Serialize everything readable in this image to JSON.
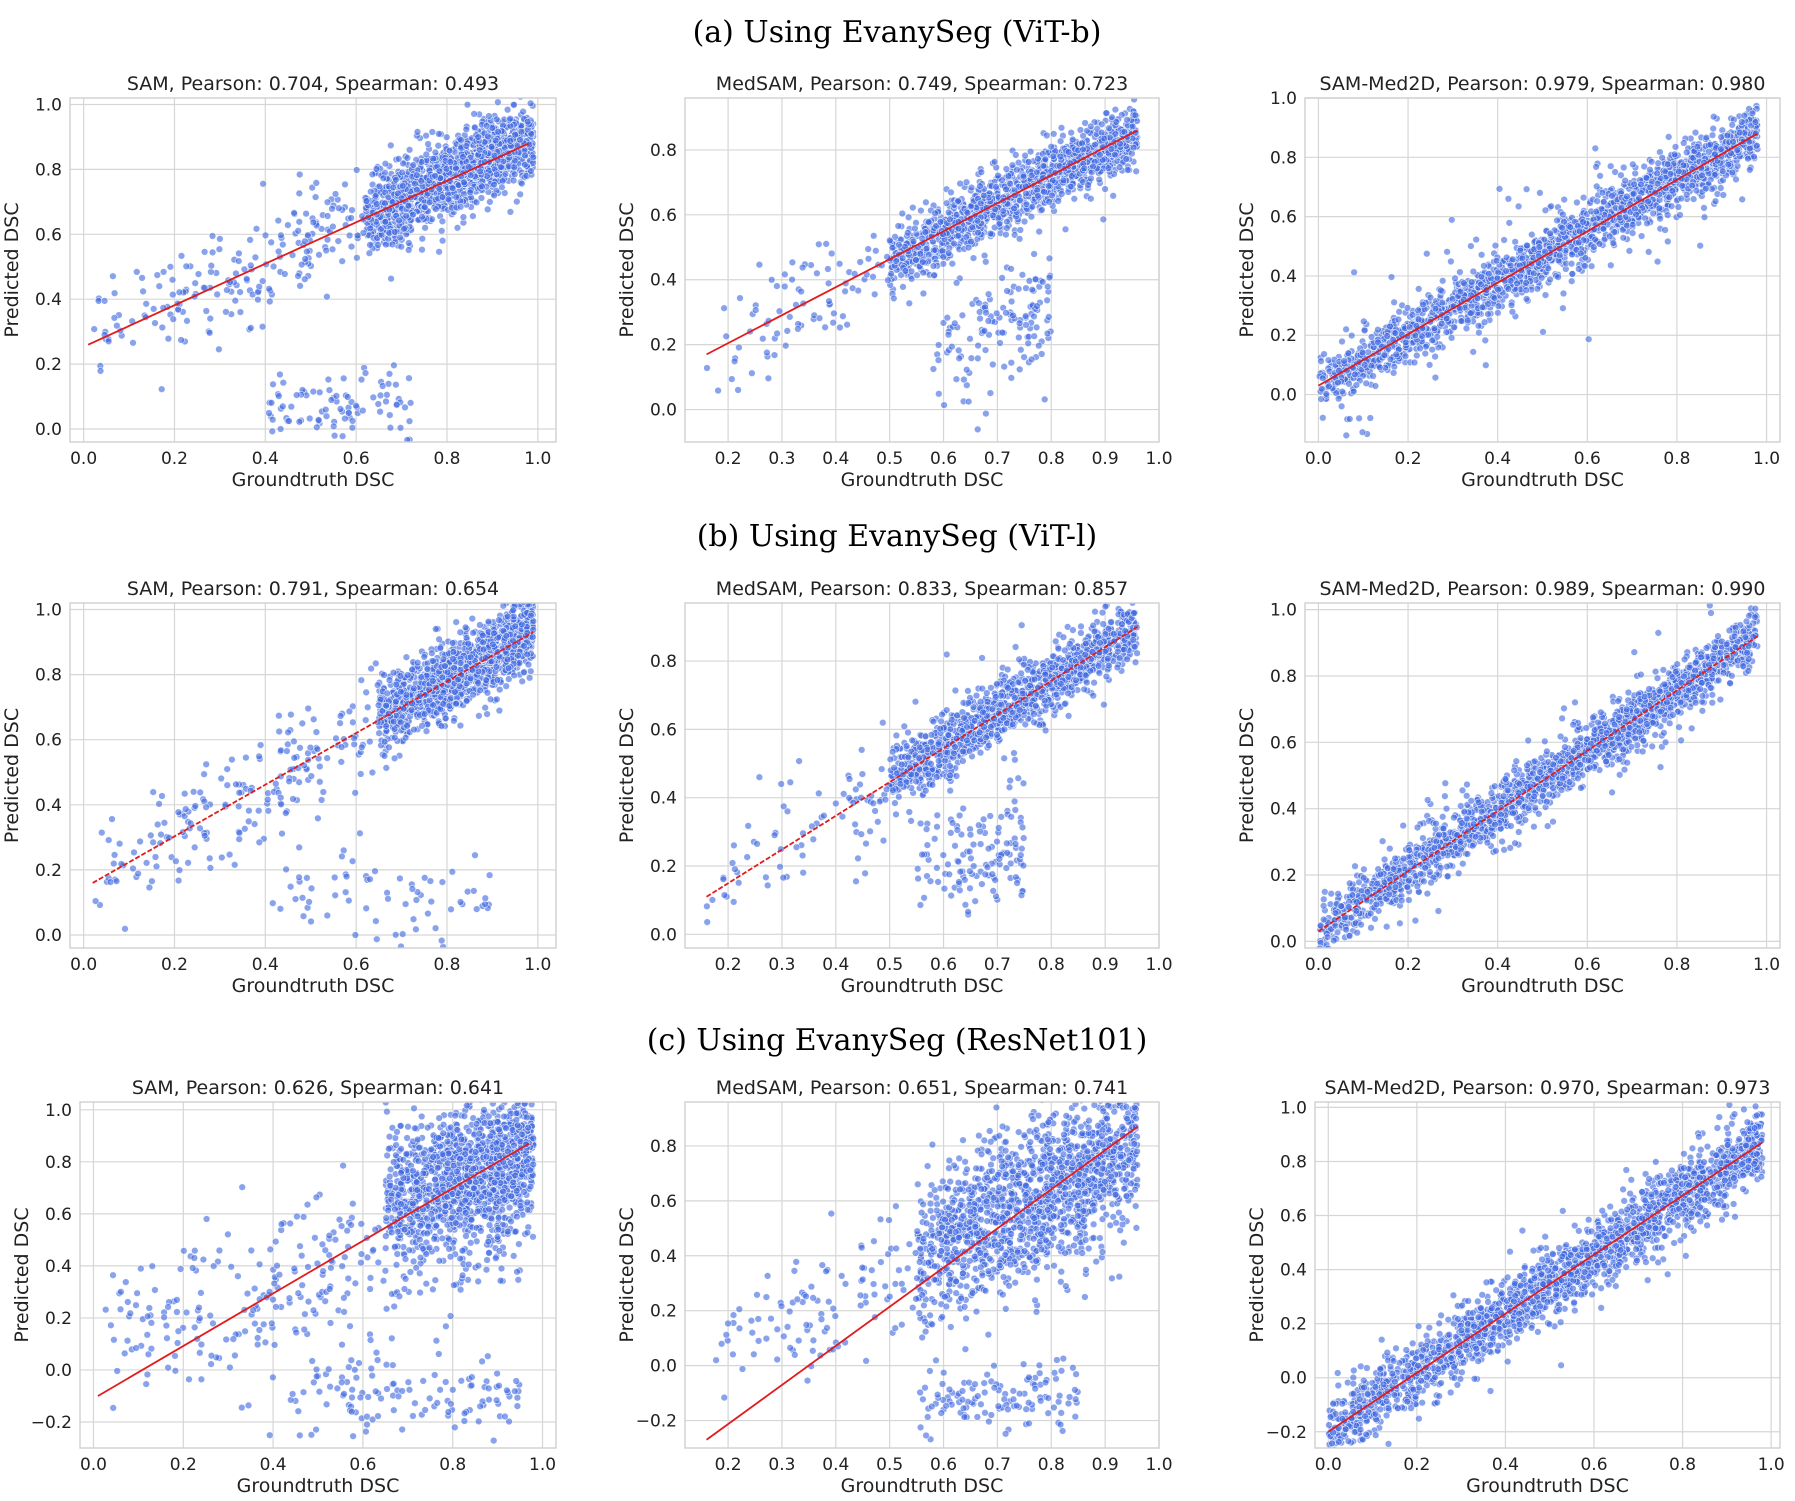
{
  "row_titles": [
    "(a) Using EvanySeg (ViT-b)",
    "(b) Using EvanySeg (ViT-l)",
    "(c) Using EvanySeg (ResNet101)"
  ],
  "colors": {
    "points": "#4169e1",
    "fit_line": "#e01c1c",
    "grid": "#d6d6d6"
  },
  "chart_data": [
    {
      "type": "scatter",
      "row": 0,
      "col": 0,
      "model": "SAM",
      "title": "SAM, Pearson: 0.704, Spearman: 0.493",
      "pearson": 0.704,
      "spearman": 0.493,
      "xlabel": "Groundtruth DSC",
      "ylabel": "Predicted DSC",
      "xlim": [
        -0.03,
        1.04
      ],
      "ylim": [
        -0.04,
        1.02
      ],
      "xticks": [
        0.0,
        0.2,
        0.4,
        0.6,
        0.8,
        1.0
      ],
      "yticks": [
        0.0,
        0.2,
        0.4,
        0.6,
        0.8,
        1.0
      ],
      "fit_line": {
        "x0": 0.01,
        "y0": 0.26,
        "x1": 0.98,
        "y1": 0.88,
        "dashed": false
      },
      "clusters": [
        {
          "n": 1300,
          "xmin": 0.62,
          "xmax": 0.99,
          "slope": 0.64,
          "intercept": 0.26,
          "sd": 0.055
        },
        {
          "n": 350,
          "xmin": 0.02,
          "xmax": 0.95,
          "slope": 0.64,
          "intercept": 0.26,
          "sd": 0.09
        },
        {
          "n": 90,
          "xmin": 0.4,
          "xmax": 0.72,
          "slope": 0.1,
          "intercept": 0.02,
          "sd": 0.05
        }
      ]
    },
    {
      "type": "scatter",
      "row": 0,
      "col": 1,
      "model": "MedSAM",
      "title": "MedSAM, Pearson: 0.749, Spearman: 0.723",
      "pearson": 0.749,
      "spearman": 0.723,
      "xlabel": "Groundtruth DSC",
      "ylabel": "Predicted DSC",
      "xlim": [
        0.12,
        1.0
      ],
      "ylim": [
        -0.1,
        0.96
      ],
      "xticks": [
        0.2,
        0.3,
        0.4,
        0.5,
        0.6,
        0.7,
        0.8,
        0.9,
        1.0
      ],
      "yticks": [
        0.0,
        0.2,
        0.4,
        0.6,
        0.8
      ],
      "fit_line": {
        "x0": 0.16,
        "y0": 0.17,
        "x1": 0.96,
        "y1": 0.86,
        "dashed": false
      },
      "clusters": [
        {
          "n": 1200,
          "xmin": 0.5,
          "xmax": 0.96,
          "slope": 0.86,
          "intercept": 0.03,
          "sd": 0.05
        },
        {
          "n": 200,
          "xmin": 0.16,
          "xmax": 0.9,
          "slope": 0.86,
          "intercept": 0.03,
          "sd": 0.08
        },
        {
          "n": 140,
          "xmin": 0.58,
          "xmax": 0.8,
          "slope": 0.5,
          "intercept": -0.1,
          "sd": 0.1
        }
      ]
    },
    {
      "type": "scatter",
      "row": 0,
      "col": 2,
      "model": "SAM-Med2D",
      "title": "SAM-Med2D, Pearson: 0.979, Spearman: 0.980",
      "pearson": 0.979,
      "spearman": 0.98,
      "xlabel": "Groundtruth DSC",
      "ylabel": "Predicted DSC",
      "xlim": [
        -0.03,
        1.03
      ],
      "ylim": [
        -0.16,
        1.0
      ],
      "xticks": [
        0.0,
        0.2,
        0.4,
        0.6,
        0.8,
        1.0
      ],
      "yticks": [
        0.0,
        0.2,
        0.4,
        0.6,
        0.8,
        1.0
      ],
      "fit_line": {
        "x0": 0.0,
        "y0": 0.03,
        "x1": 0.98,
        "y1": 0.88,
        "dashed": false
      },
      "clusters": [
        {
          "n": 1900,
          "xmin": 0.0,
          "xmax": 0.98,
          "slope": 0.87,
          "intercept": 0.03,
          "sd": 0.045
        },
        {
          "n": 260,
          "xmin": 0.0,
          "xmax": 0.95,
          "slope": 0.87,
          "intercept": 0.03,
          "sd": 0.11
        }
      ]
    },
    {
      "type": "scatter",
      "row": 1,
      "col": 0,
      "model": "SAM",
      "title": "SAM, Pearson: 0.791, Spearman: 0.654",
      "pearson": 0.791,
      "spearman": 0.654,
      "xlabel": "Groundtruth DSC",
      "ylabel": "Predicted DSC",
      "xlim": [
        -0.03,
        1.04
      ],
      "ylim": [
        -0.04,
        1.02
      ],
      "xticks": [
        0.0,
        0.2,
        0.4,
        0.6,
        0.8,
        1.0
      ],
      "yticks": [
        0.0,
        0.2,
        0.4,
        0.6,
        0.8,
        1.0
      ],
      "fit_line": {
        "x0": 0.02,
        "y0": 0.16,
        "x1": 0.99,
        "y1": 0.93,
        "dashed": true
      },
      "clusters": [
        {
          "n": 1300,
          "xmin": 0.65,
          "xmax": 0.99,
          "slope": 0.79,
          "intercept": 0.15,
          "sd": 0.05
        },
        {
          "n": 320,
          "xmin": 0.02,
          "xmax": 0.95,
          "slope": 0.79,
          "intercept": 0.15,
          "sd": 0.09
        },
        {
          "n": 70,
          "xmin": 0.4,
          "xmax": 0.9,
          "slope": 0.0,
          "intercept": 0.12,
          "sd": 0.08
        }
      ]
    },
    {
      "type": "scatter",
      "row": 1,
      "col": 1,
      "model": "MedSAM",
      "title": "MedSAM, Pearson: 0.833, Spearman: 0.857",
      "pearson": 0.833,
      "spearman": 0.857,
      "xlabel": "Groundtruth DSC",
      "ylabel": "Predicted DSC",
      "xlim": [
        0.12,
        1.0
      ],
      "ylim": [
        -0.04,
        0.97
      ],
      "xticks": [
        0.2,
        0.3,
        0.4,
        0.5,
        0.6,
        0.7,
        0.8,
        0.9,
        1.0
      ],
      "yticks": [
        0.0,
        0.2,
        0.4,
        0.6,
        0.8
      ],
      "fit_line": {
        "x0": 0.16,
        "y0": 0.11,
        "x1": 0.96,
        "y1": 0.9,
        "dashed": true
      },
      "clusters": [
        {
          "n": 1200,
          "xmin": 0.5,
          "xmax": 0.96,
          "slope": 0.98,
          "intercept": -0.04,
          "sd": 0.045
        },
        {
          "n": 200,
          "xmin": 0.16,
          "xmax": 0.9,
          "slope": 0.98,
          "intercept": -0.04,
          "sd": 0.08
        },
        {
          "n": 130,
          "xmin": 0.55,
          "xmax": 0.75,
          "slope": 0.3,
          "intercept": 0.05,
          "sd": 0.09
        }
      ]
    },
    {
      "type": "scatter",
      "row": 1,
      "col": 2,
      "model": "SAM-Med2D",
      "title": "SAM-Med2D, Pearson: 0.989, Spearman: 0.990",
      "pearson": 0.989,
      "spearman": 0.99,
      "xlabel": "Groundtruth DSC",
      "ylabel": "Predicted DSC",
      "xlim": [
        -0.03,
        1.03
      ],
      "ylim": [
        -0.02,
        1.02
      ],
      "xticks": [
        0.0,
        0.2,
        0.4,
        0.6,
        0.8,
        1.0
      ],
      "yticks": [
        0.0,
        0.2,
        0.4,
        0.6,
        0.8,
        1.0
      ],
      "fit_line": {
        "x0": 0.0,
        "y0": 0.03,
        "x1": 0.98,
        "y1": 0.92,
        "dashed": true
      },
      "clusters": [
        {
          "n": 1800,
          "xmin": 0.0,
          "xmax": 0.98,
          "slope": 0.91,
          "intercept": 0.03,
          "sd": 0.04
        },
        {
          "n": 200,
          "xmin": 0.0,
          "xmax": 0.9,
          "slope": 0.91,
          "intercept": 0.03,
          "sd": 0.09
        }
      ]
    },
    {
      "type": "scatter",
      "row": 2,
      "col": 0,
      "model": "SAM",
      "title": "SAM, Pearson: 0.626, Spearman: 0.641",
      "pearson": 0.626,
      "spearman": 0.641,
      "xlabel": "Groundtruth DSC",
      "ylabel": "Predicted DSC",
      "xlim": [
        -0.03,
        1.03
      ],
      "ylim": [
        -0.3,
        1.03
      ],
      "xticks": [
        0.0,
        0.2,
        0.4,
        0.6,
        0.8,
        1.0
      ],
      "yticks": [
        -0.2,
        0.0,
        0.2,
        0.4,
        0.6,
        0.8,
        1.0
      ],
      "fit_line": {
        "x0": 0.01,
        "y0": -0.1,
        "x1": 0.97,
        "y1": 0.87,
        "dashed": false
      },
      "clusters": [
        {
          "n": 1300,
          "xmin": 0.65,
          "xmax": 0.98,
          "slope": 0.6,
          "intercept": 0.25,
          "sd": 0.13
        },
        {
          "n": 330,
          "xmin": 0.02,
          "xmax": 0.95,
          "slope": 0.5,
          "intercept": 0.1,
          "sd": 0.15
        },
        {
          "n": 120,
          "xmin": 0.4,
          "xmax": 0.95,
          "slope": 0.0,
          "intercept": -0.1,
          "sd": 0.07
        }
      ]
    },
    {
      "type": "scatter",
      "row": 2,
      "col": 1,
      "model": "MedSAM",
      "title": "MedSAM, Pearson: 0.651, Spearman: 0.741",
      "pearson": 0.651,
      "spearman": 0.741,
      "xlabel": "Groundtruth DSC",
      "ylabel": "Predicted DSC",
      "xlim": [
        0.12,
        1.0
      ],
      "ylim": [
        -0.3,
        0.96
      ],
      "xticks": [
        0.2,
        0.3,
        0.4,
        0.5,
        0.6,
        0.7,
        0.8,
        0.9,
        1.0
      ],
      "yticks": [
        -0.2,
        0.0,
        0.2,
        0.4,
        0.6,
        0.8
      ],
      "fit_line": {
        "x0": 0.16,
        "y0": -0.27,
        "x1": 0.96,
        "y1": 0.87,
        "dashed": false
      },
      "clusters": [
        {
          "n": 1400,
          "xmin": 0.55,
          "xmax": 0.96,
          "slope": 1.0,
          "intercept": -0.15,
          "sd": 0.14
        },
        {
          "n": 220,
          "xmin": 0.16,
          "xmax": 0.9,
          "slope": 0.7,
          "intercept": -0.05,
          "sd": 0.12
        },
        {
          "n": 120,
          "xmin": 0.55,
          "xmax": 0.85,
          "slope": 0.0,
          "intercept": -0.12,
          "sd": 0.06
        }
      ]
    },
    {
      "type": "scatter",
      "row": 2,
      "col": 2,
      "model": "SAM-Med2D",
      "title": "SAM-Med2D, Pearson: 0.970, Spearman: 0.973",
      "pearson": 0.97,
      "spearman": 0.973,
      "xlabel": "Groundtruth DSC",
      "ylabel": "Predicted DSC",
      "xlim": [
        -0.03,
        1.02
      ],
      "ylim": [
        -0.26,
        1.02
      ],
      "xticks": [
        0.0,
        0.2,
        0.4,
        0.6,
        0.8,
        1.0
      ],
      "yticks": [
        -0.2,
        0.0,
        0.2,
        0.4,
        0.6,
        0.8,
        1.0
      ],
      "fit_line": {
        "x0": 0.0,
        "y0": -0.2,
        "x1": 0.98,
        "y1": 0.87,
        "dashed": false
      },
      "clusters": [
        {
          "n": 1900,
          "xmin": 0.0,
          "xmax": 0.98,
          "slope": 1.09,
          "intercept": -0.2,
          "sd": 0.06
        },
        {
          "n": 260,
          "xmin": 0.0,
          "xmax": 0.95,
          "slope": 1.09,
          "intercept": -0.2,
          "sd": 0.12
        }
      ]
    }
  ]
}
